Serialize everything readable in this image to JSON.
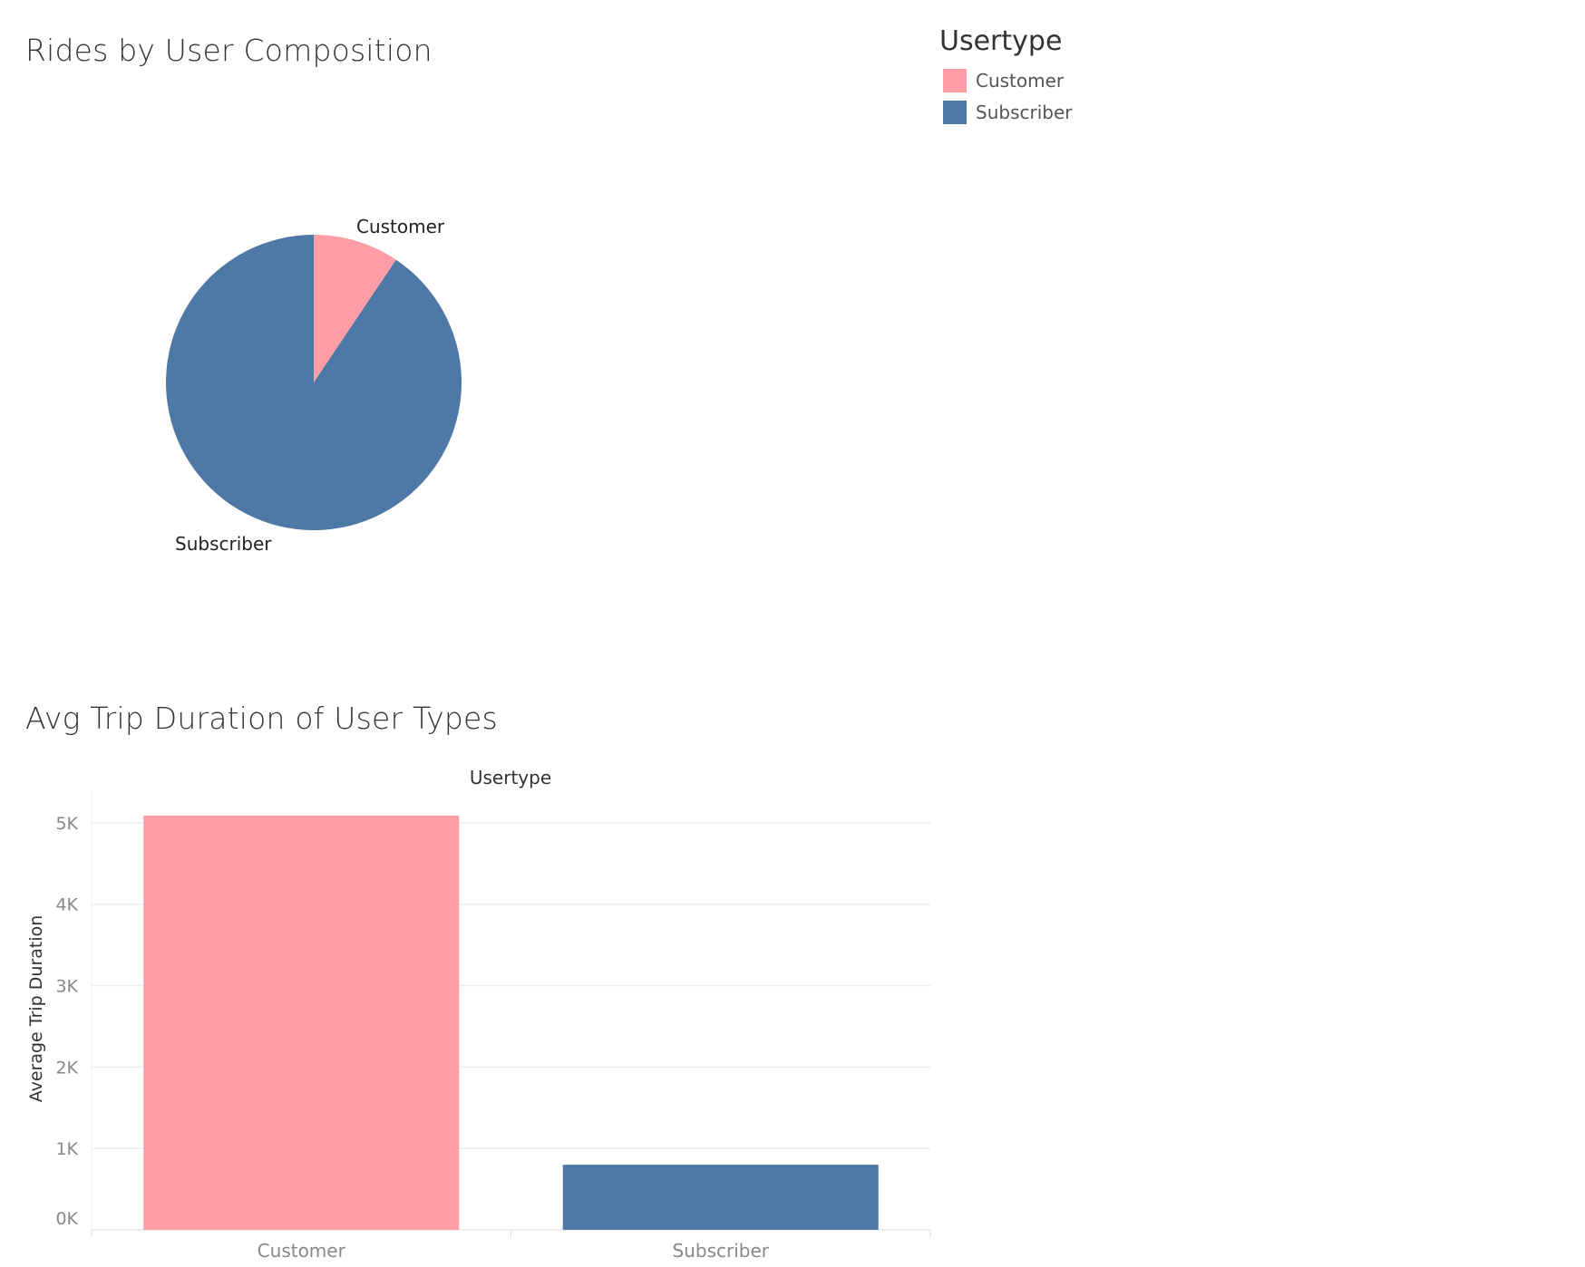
{
  "pie_title": "Rides by User Composition",
  "bar_title": "Avg Trip Duration of User Types",
  "legend": {
    "title": "Usertype",
    "items": [
      {
        "label": "Customer",
        "color": "#ff9da7"
      },
      {
        "label": "Subscriber",
        "color": "#4e79a7"
      }
    ]
  },
  "chart_data": [
    {
      "type": "pie",
      "title": "Rides by User Composition",
      "slices": [
        {
          "label": "Customer",
          "share": 0.094,
          "color": "#ff9da7"
        },
        {
          "label": "Subscriber",
          "share": 0.906,
          "color": "#4e79a7"
        }
      ]
    },
    {
      "type": "bar",
      "title": "Avg Trip Duration of User Types",
      "column_header": "Usertype",
      "categories": [
        "Customer",
        "Subscriber"
      ],
      "values": [
        5090,
        800
      ],
      "colors": [
        "#ff9da7",
        "#4e79a7"
      ],
      "ylabel": "Average Trip Duration",
      "ylim": [
        0,
        5400
      ],
      "yticks": [
        0,
        1000,
        2000,
        3000,
        4000,
        5000
      ],
      "ytick_labels": [
        "0K",
        "1K",
        "2K",
        "3K",
        "4K",
        "5K"
      ],
      "grid": true
    }
  ]
}
